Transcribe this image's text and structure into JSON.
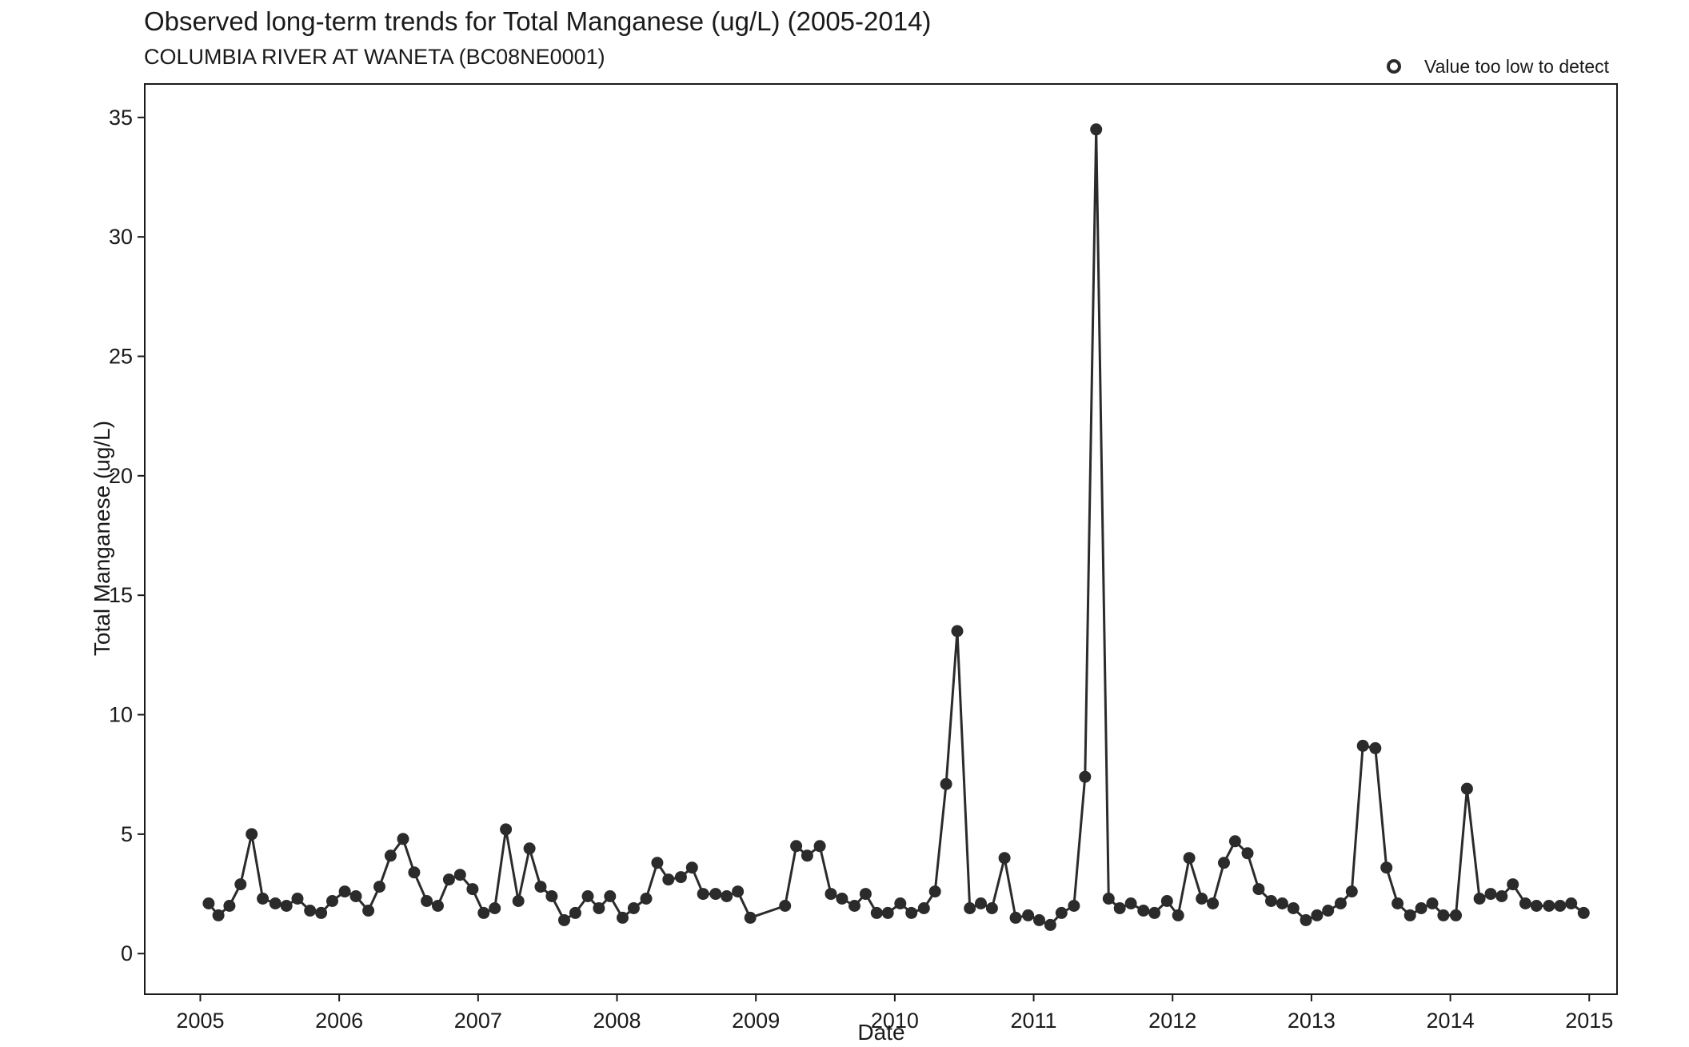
{
  "chart_data": {
    "type": "line",
    "title": "Observed long-term trends for Total Manganese (ug/L) (2005-2014)",
    "subtitle": "COLUMBIA RIVER AT WANETA (BC08NE0001)",
    "xlabel": "Date",
    "ylabel": "Total Manganese (ug/L)",
    "xlim": [
      2004.6,
      2015.2
    ],
    "ylim": [
      -1.7,
      36.4
    ],
    "x_ticks": [
      2005,
      2006,
      2007,
      2008,
      2009,
      2010,
      2011,
      2012,
      2013,
      2014,
      2015
    ],
    "y_ticks": [
      0,
      5,
      10,
      15,
      20,
      25,
      30,
      35
    ],
    "grid": false,
    "legend": {
      "position": "top-right",
      "entries": [
        "Value too low to detect"
      ]
    },
    "series": [
      {
        "markers": "filled-circle",
        "color": "#2b2b2b",
        "x": [
          2005.06,
          2005.13,
          2005.21,
          2005.29,
          2005.37,
          2005.45,
          2005.54,
          2005.62,
          2005.7,
          2005.79,
          2005.87,
          2005.95,
          2006.04,
          2006.12,
          2006.21,
          2006.29,
          2006.37,
          2006.46,
          2006.54,
          2006.63,
          2006.71,
          2006.79,
          2006.87,
          2006.96,
          2007.04,
          2007.12,
          2007.2,
          2007.29,
          2007.37,
          2007.45,
          2007.53,
          2007.62,
          2007.7,
          2007.79,
          2007.87,
          2007.95,
          2008.04,
          2008.12,
          2008.21,
          2008.29,
          2008.37,
          2008.46,
          2008.54,
          2008.62,
          2008.71,
          2008.79,
          2008.87,
          2008.96,
          2009.21,
          2009.29,
          2009.37,
          2009.46,
          2009.54,
          2009.62,
          2009.71,
          2009.79,
          2009.87,
          2009.95,
          2010.04,
          2010.12,
          2010.21,
          2010.29,
          2010.37,
          2010.45,
          2010.54,
          2010.62,
          2010.7,
          2010.79,
          2010.87,
          2010.96,
          2011.04,
          2011.12,
          2011.2,
          2011.29,
          2011.37,
          2011.45,
          2011.54,
          2011.62,
          2011.7,
          2011.79,
          2011.87,
          2011.96,
          2012.04,
          2012.12,
          2012.21,
          2012.29,
          2012.37,
          2012.45,
          2012.54,
          2012.62,
          2012.71,
          2012.79,
          2012.87,
          2012.96,
          2013.04,
          2013.12,
          2013.21,
          2013.29,
          2013.37,
          2013.46,
          2013.54,
          2013.62,
          2013.71,
          2013.79,
          2013.87,
          2013.95,
          2014.04,
          2014.12,
          2014.21,
          2014.29,
          2014.37,
          2014.45,
          2014.54,
          2014.62,
          2014.71,
          2014.79,
          2014.87,
          2014.96
        ],
        "y": [
          2.1,
          1.6,
          2.0,
          2.9,
          5.0,
          2.3,
          2.1,
          2.0,
          2.3,
          1.8,
          1.7,
          2.2,
          2.6,
          2.4,
          1.8,
          2.8,
          4.1,
          4.8,
          3.4,
          2.2,
          2.0,
          3.1,
          3.3,
          2.7,
          1.7,
          1.9,
          5.2,
          2.2,
          4.4,
          2.8,
          2.4,
          1.4,
          1.7,
          2.4,
          1.9,
          2.4,
          1.5,
          1.9,
          2.3,
          3.8,
          3.1,
          3.2,
          3.6,
          2.5,
          2.5,
          2.4,
          2.6,
          1.5,
          2.0,
          4.5,
          4.1,
          4.5,
          2.5,
          2.3,
          2.0,
          2.5,
          1.7,
          1.7,
          2.1,
          1.7,
          1.9,
          2.6,
          7.1,
          13.5,
          1.9,
          2.1,
          1.9,
          4.0,
          1.5,
          1.6,
          1.4,
          1.2,
          1.7,
          2.0,
          7.4,
          34.5,
          2.3,
          1.9,
          2.1,
          1.8,
          1.7,
          2.2,
          1.6,
          4.0,
          2.3,
          2.1,
          3.8,
          4.7,
          4.2,
          2.7,
          2.2,
          2.1,
          1.9,
          1.4,
          1.6,
          1.8,
          2.1,
          2.6,
          8.7,
          8.6,
          3.6,
          2.1,
          1.6,
          1.9,
          2.1,
          1.6,
          1.6,
          6.9,
          2.3,
          2.5,
          2.4,
          2.9,
          2.1,
          2.0,
          2.0,
          2.0,
          2.1,
          1.7
        ]
      }
    ]
  }
}
